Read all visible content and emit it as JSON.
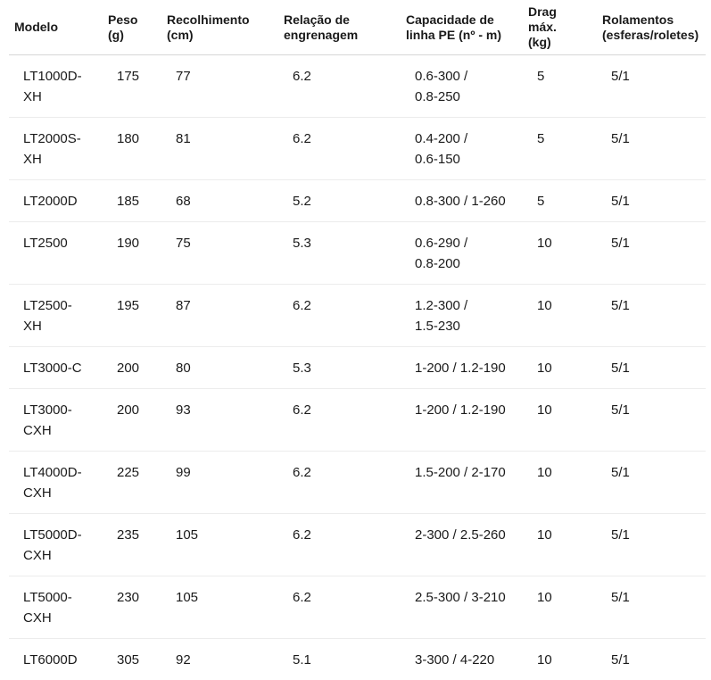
{
  "table": {
    "columns": [
      {
        "key": "modelo",
        "label": "Modelo"
      },
      {
        "key": "peso",
        "label": "Peso\n(g)"
      },
      {
        "key": "recolhimento",
        "label": "Recolhimento\n(cm)"
      },
      {
        "key": "relacao",
        "label": "Relação de\nengrenagem"
      },
      {
        "key": "capacidade",
        "label": "Capacidade de\nlinha PE (nº - m)"
      },
      {
        "key": "drag",
        "label": "Drag\nmáx.\n(kg)"
      },
      {
        "key": "rolamentos",
        "label": "Rolamentos\n(esferas/roletes)"
      }
    ],
    "rows": [
      {
        "modelo": "LT1000D-\nXH",
        "peso": "175",
        "recolhimento": "77",
        "relacao": "6.2",
        "capacidade": "0.6-300 /\n0.8-250",
        "drag": "5",
        "rolamentos": "5/1"
      },
      {
        "modelo": "LT2000S-\nXH",
        "peso": "180",
        "recolhimento": "81",
        "relacao": "6.2",
        "capacidade": "0.4-200 /\n0.6-150",
        "drag": "5",
        "rolamentos": "5/1"
      },
      {
        "modelo": "LT2000D",
        "peso": "185",
        "recolhimento": "68",
        "relacao": "5.2",
        "capacidade": "0.8-300 / 1-260",
        "drag": "5",
        "rolamentos": "5/1"
      },
      {
        "modelo": "LT2500",
        "peso": "190",
        "recolhimento": "75",
        "relacao": "5.3",
        "capacidade": "0.6-290 /\n0.8-200",
        "drag": "10",
        "rolamentos": "5/1"
      },
      {
        "modelo": "LT2500-\nXH",
        "peso": "195",
        "recolhimento": "87",
        "relacao": "6.2",
        "capacidade": "1.2-300 /\n1.5-230",
        "drag": "10",
        "rolamentos": "5/1"
      },
      {
        "modelo": "LT3000-C",
        "peso": "200",
        "recolhimento": "80",
        "relacao": "5.3",
        "capacidade": "1-200 / 1.2-190",
        "drag": "10",
        "rolamentos": "5/1"
      },
      {
        "modelo": "LT3000-\nCXH",
        "peso": "200",
        "recolhimento": "93",
        "relacao": "6.2",
        "capacidade": "1-200 / 1.2-190",
        "drag": "10",
        "rolamentos": "5/1"
      },
      {
        "modelo": "LT4000D-\nCXH",
        "peso": "225",
        "recolhimento": "99",
        "relacao": "6.2",
        "capacidade": "1.5-200 / 2-170",
        "drag": "10",
        "rolamentos": "5/1"
      },
      {
        "modelo": "LT5000D-\nCXH",
        "peso": "235",
        "recolhimento": "105",
        "relacao": "6.2",
        "capacidade": "2-300 / 2.5-260",
        "drag": "10",
        "rolamentos": "5/1"
      },
      {
        "modelo": "LT5000-\nCXH",
        "peso": "230",
        "recolhimento": "105",
        "relacao": "6.2",
        "capacidade": "2.5-300 / 3-210",
        "drag": "10",
        "rolamentos": "5/1"
      },
      {
        "modelo": "LT6000D",
        "peso": "305",
        "recolhimento": "92",
        "relacao": "5.1",
        "capacidade": "3-300 / 4-220",
        "drag": "10",
        "rolamentos": "5/1"
      }
    ]
  },
  "colors": {
    "text": "#1a1a1a",
    "header_divider": "#d6d6d6",
    "row_divider": "#ececec",
    "background": "#ffffff"
  }
}
